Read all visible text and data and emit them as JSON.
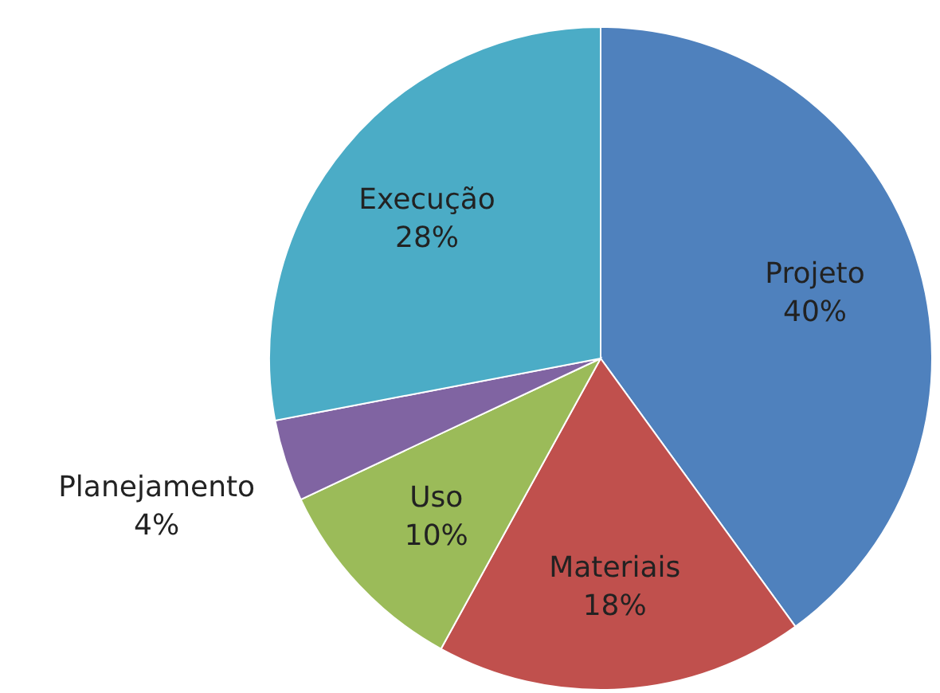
{
  "chart_data": {
    "type": "pie",
    "categories": [
      "Projeto",
      "Materiais",
      "Uso",
      "Planejamento",
      "Execução"
    ],
    "values": [
      40,
      18,
      10,
      4,
      28
    ],
    "value_labels": [
      "40%",
      "18%",
      "10%",
      "4%",
      "28%"
    ],
    "colors": [
      "#4f81bd",
      "#c0504d",
      "#9bbb59",
      "#8064a2",
      "#4bacc6"
    ]
  }
}
